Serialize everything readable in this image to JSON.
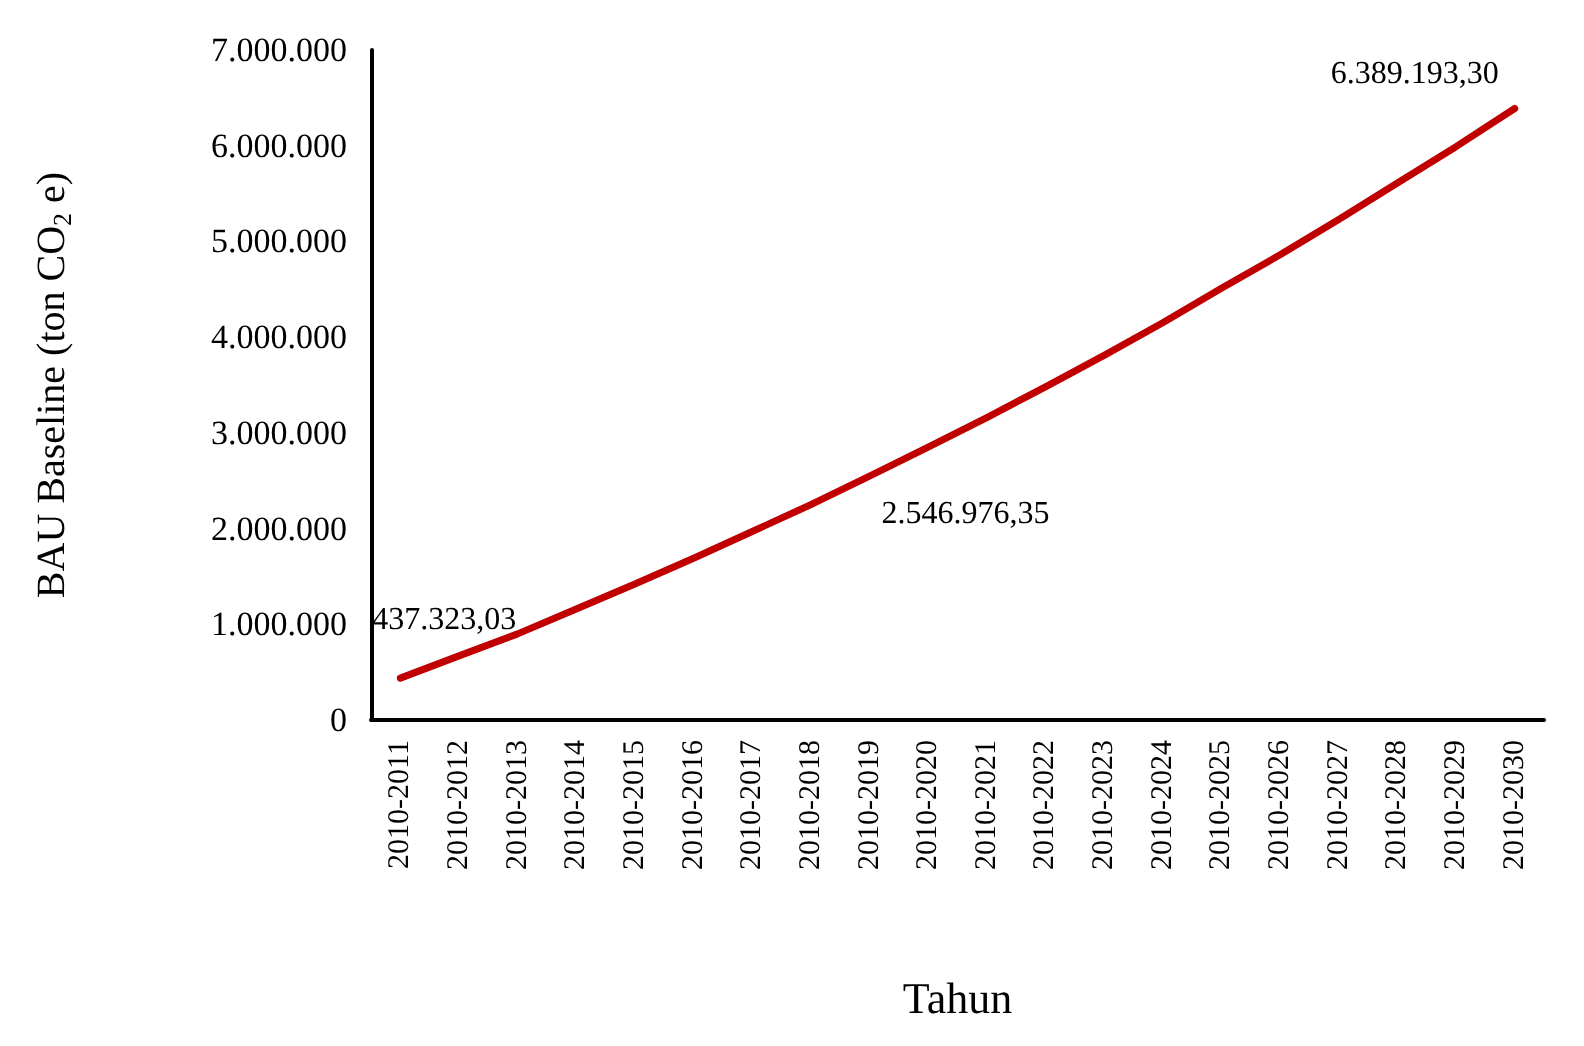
{
  "chart_data": {
    "type": "line",
    "xlabel": "Tahun",
    "ylabel": "BAU Baseline (ton CO$_{2}$ e)",
    "categories": [
      "2010-2011",
      "2010-2012",
      "2010-2013",
      "2010-2014",
      "2010-2015",
      "2010-2016",
      "2010-2017",
      "2010-2018",
      "2010-2019",
      "2010-2020",
      "2010-2021",
      "2010-2022",
      "2010-2023",
      "2010-2024",
      "2010-2025",
      "2010-2026",
      "2010-2027",
      "2010-2028",
      "2010-2029",
      "2010-2030"
    ],
    "series": [
      {
        "color": "#c00000",
        "values": [
          437323.03,
          670000,
          900000,
          1160000,
          1420000,
          1690000,
          1970000,
          2250000,
          2546976.35,
          2850000,
          3160000,
          3480000,
          3810000,
          4150000,
          4510000,
          4860000,
          5230000,
          5610000,
          5990000,
          6389193.3
        ],
        "value_labels": [
          "437.323,03",
          null,
          null,
          null,
          null,
          null,
          null,
          null,
          "2.546.976,35",
          null,
          null,
          null,
          null,
          null,
          null,
          null,
          null,
          null,
          null,
          "6.389.193,30"
        ]
      }
    ],
    "ylim": [
      0,
      7000000
    ],
    "yticks": [
      0,
      {
        "value": 1000000,
        "label": "1.000.000"
      },
      {
        "value": 2000000,
        "label": "2.000.000"
      },
      {
        "value": 3000000,
        "label": "3.000.000"
      },
      {
        "value": 4000000,
        "label": "4.000.000"
      },
      {
        "value": 5000000,
        "label": "5.000.000"
      },
      {
        "value": 6000000,
        "label": "6.000.000"
      },
      {
        "value": 7000000,
        "label": "7.000.000"
      }
    ],
    "grid": false,
    "marker": "none",
    "line_style": "solid"
  }
}
